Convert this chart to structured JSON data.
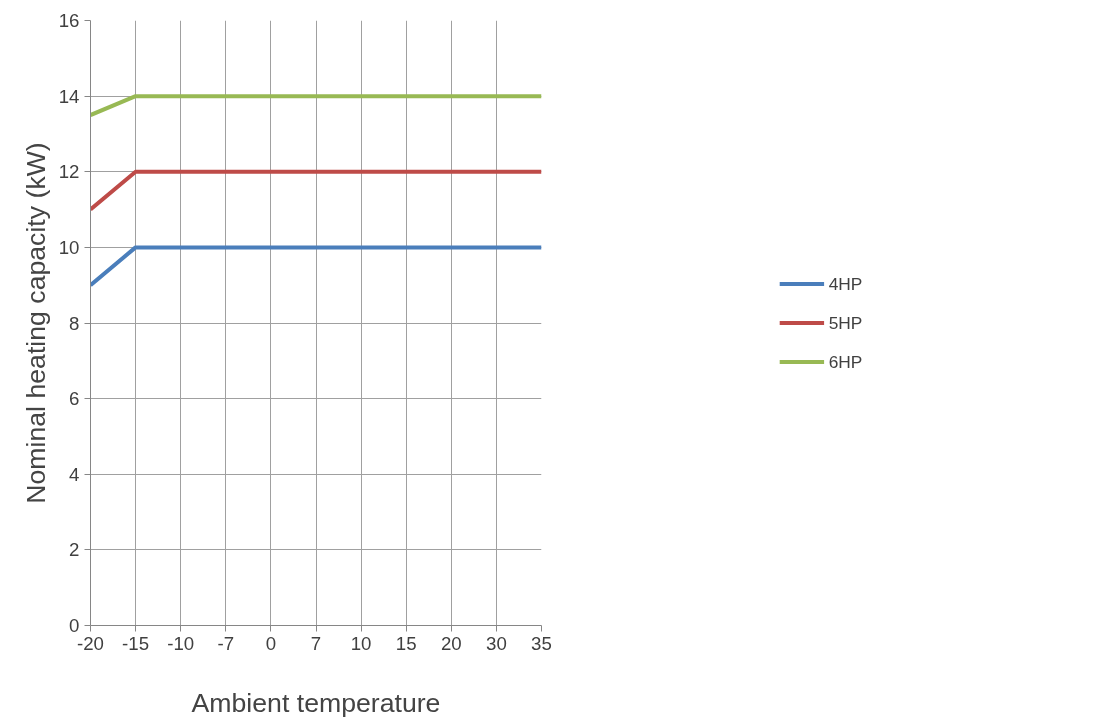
{
  "chart_data": {
    "type": "line",
    "xlabel": "Ambient temperature",
    "ylabel": "Nominal heating capacity (kW)",
    "categories": [
      "-20",
      "-15",
      "-10",
      "-7",
      "0",
      "7",
      "10",
      "15",
      "20",
      "30",
      "35"
    ],
    "series": [
      {
        "name": "4HP",
        "color": "#4a7ebb",
        "values": [
          9,
          10,
          10,
          10,
          10,
          10,
          10,
          10,
          10,
          10,
          10
        ]
      },
      {
        "name": "5HP",
        "color": "#be4b48",
        "values": [
          11,
          12,
          12,
          12,
          12,
          12,
          12,
          12,
          12,
          12,
          12
        ]
      },
      {
        "name": "6HP",
        "color": "#98b954",
        "values": [
          13.5,
          14,
          14,
          14,
          14,
          14,
          14,
          14,
          14,
          14,
          14
        ]
      }
    ],
    "ylim": [
      0,
      16
    ],
    "yticks": [
      0,
      2,
      4,
      6,
      8,
      10,
      12,
      14,
      16
    ],
    "grid": true,
    "legend": "right",
    "marker": "none",
    "line_style": "solid"
  }
}
